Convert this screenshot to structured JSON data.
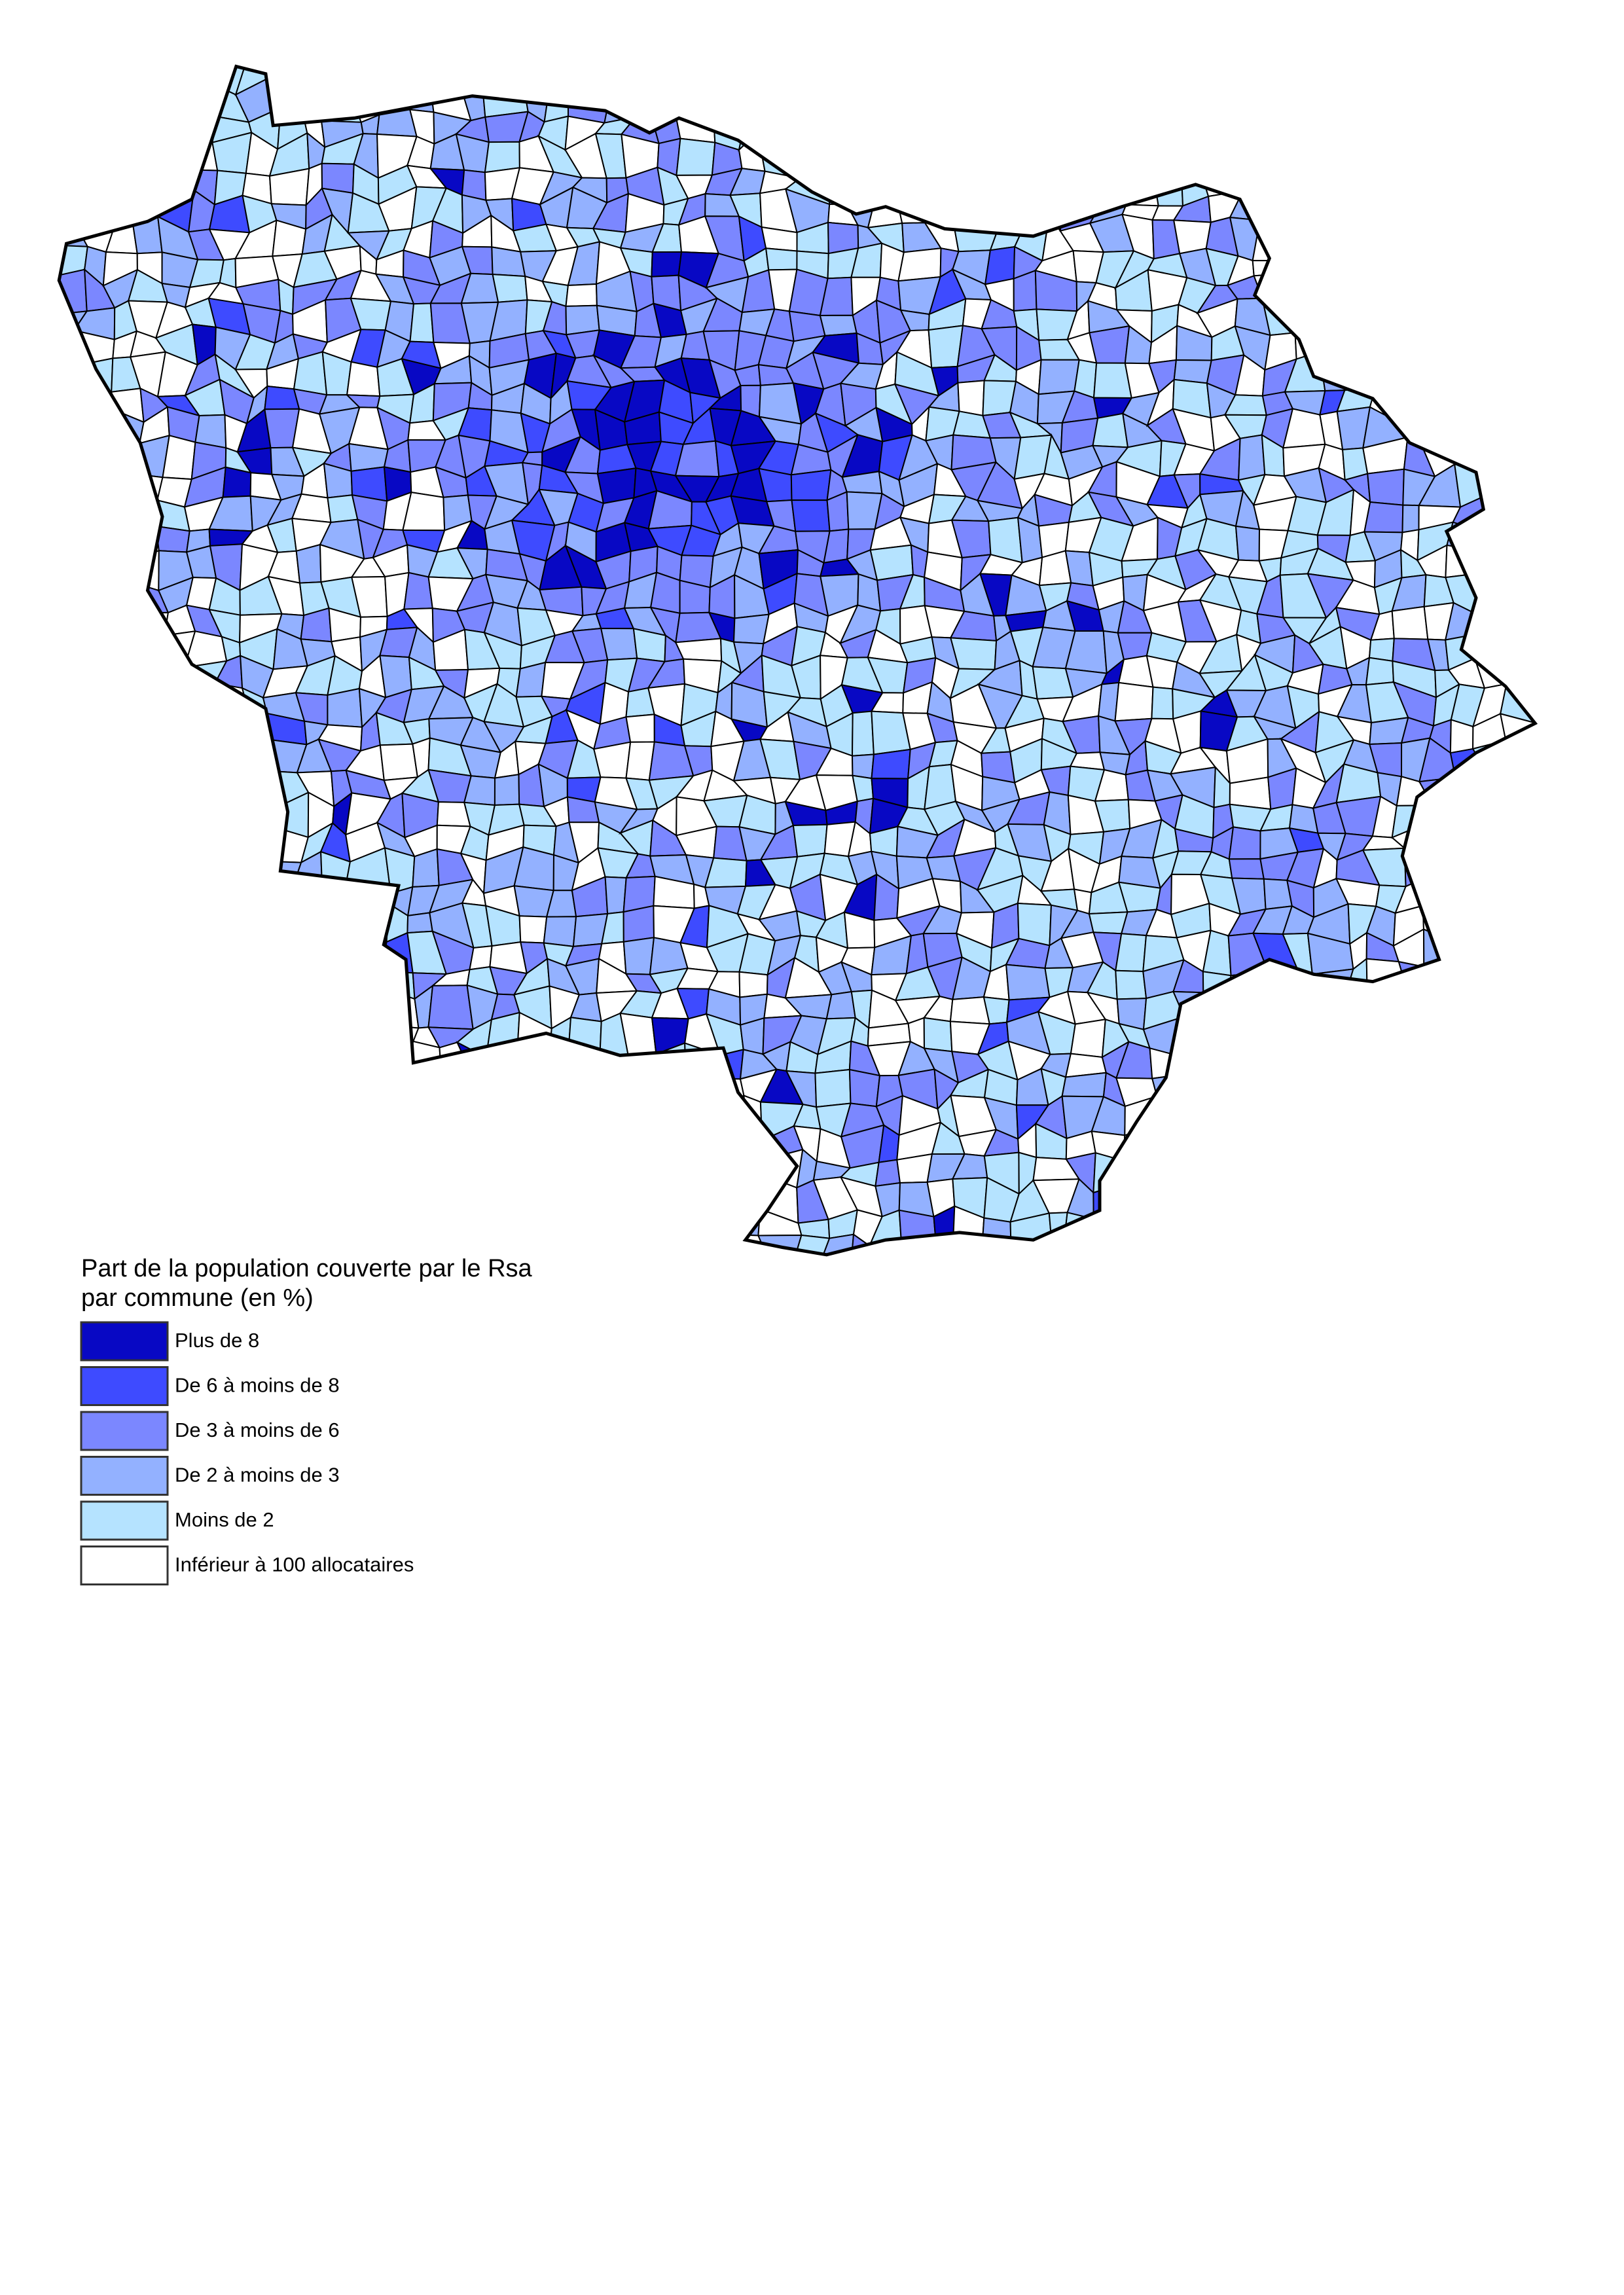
{
  "legend": {
    "title_lines": [
      "Part de la population couverte par le Rsa",
      "par commune (en %)"
    ],
    "items": [
      {
        "label": "Plus de 8",
        "color": "#0808c4"
      },
      {
        "label": "De 6 à moins de 8",
        "color": "#3e4bff"
      },
      {
        "label": "De 3 à moins de 6",
        "color": "#7b87ff"
      },
      {
        "label": "De 2 à moins de 3",
        "color": "#93b1ff"
      },
      {
        "label": "Moins de 2",
        "color": "#b5e3ff"
      },
      {
        "label": "Inférieur à 100 allocataires",
        "color": "#ffffff"
      }
    ]
  }
}
